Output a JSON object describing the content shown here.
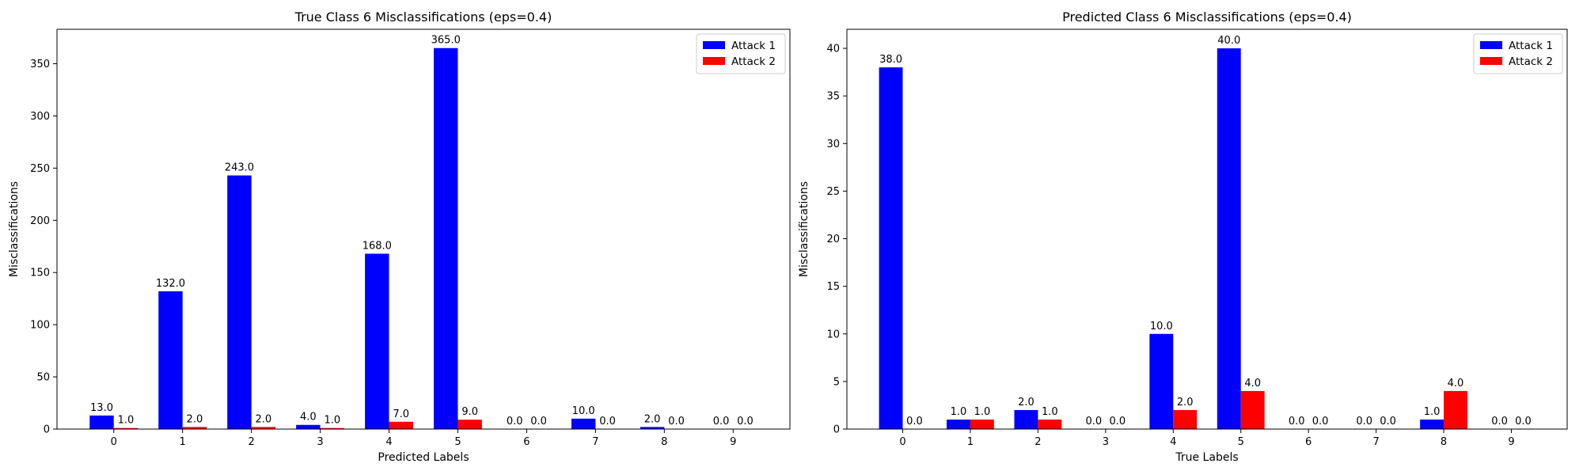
{
  "chart_data": [
    {
      "type": "bar",
      "title": "True Class 6 Misclassifications (eps=0.4)",
      "xlabel": "Predicted Labels",
      "ylabel": "Misclassifications",
      "categories": [
        "0",
        "1",
        "2",
        "3",
        "4",
        "5",
        "6",
        "7",
        "8",
        "9"
      ],
      "ylim": [
        0,
        383
      ],
      "yticks": [
        0,
        50,
        100,
        150,
        200,
        250,
        300,
        350
      ],
      "grid": false,
      "legend": "top-right",
      "series": [
        {
          "name": "Attack 1",
          "color": "#0000ff",
          "values": [
            13.0,
            132.0,
            243.0,
            4.0,
            168.0,
            365.0,
            0.0,
            10.0,
            2.0,
            0.0
          ]
        },
        {
          "name": "Attack 2",
          "color": "#ff0000",
          "values": [
            1.0,
            2.0,
            2.0,
            1.0,
            7.0,
            9.0,
            0.0,
            0.0,
            0.0,
            0.0
          ]
        }
      ]
    },
    {
      "type": "bar",
      "title": "Predicted Class 6 Misclassifications (eps=0.4)",
      "xlabel": "True Labels",
      "ylabel": "Misclassifications",
      "categories": [
        "0",
        "1",
        "2",
        "3",
        "4",
        "5",
        "6",
        "7",
        "8",
        "9"
      ],
      "ylim": [
        0,
        42
      ],
      "yticks": [
        0,
        5,
        10,
        15,
        20,
        25,
        30,
        35,
        40
      ],
      "grid": false,
      "legend": "top-right",
      "series": [
        {
          "name": "Attack 1",
          "color": "#0000ff",
          "values": [
            38.0,
            1.0,
            2.0,
            0.0,
            10.0,
            40.0,
            0.0,
            0.0,
            1.0,
            0.0
          ]
        },
        {
          "name": "Attack 2",
          "color": "#ff0000",
          "values": [
            0.0,
            1.0,
            1.0,
            0.0,
            2.0,
            4.0,
            0.0,
            0.0,
            4.0,
            0.0
          ]
        }
      ]
    }
  ]
}
